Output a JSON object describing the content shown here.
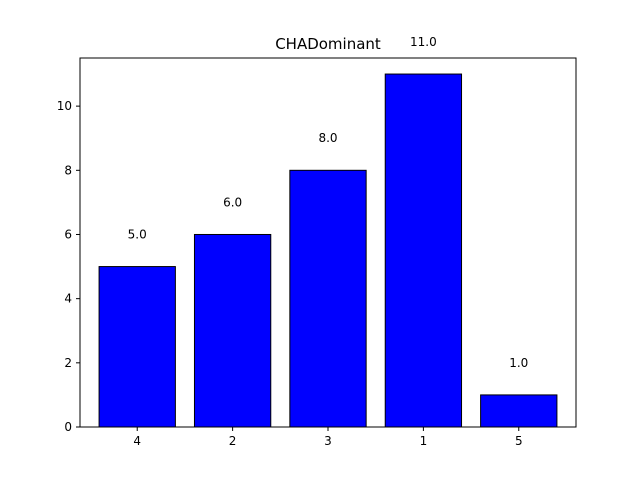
{
  "chart_data": {
    "type": "bar",
    "title": "CHADominant",
    "xlabel": "",
    "ylabel": "",
    "categories": [
      "4",
      "2",
      "3",
      "1",
      "5"
    ],
    "values": [
      5.0,
      6.0,
      8.0,
      11.0,
      1.0
    ],
    "data_labels": [
      "5.0",
      "6.0",
      "8.0",
      "11.0",
      "1.0"
    ],
    "ylim": [
      0,
      11.5
    ],
    "yticks": [
      0,
      2,
      4,
      6,
      8,
      10
    ],
    "grid": false,
    "colors": {
      "bar_fill": "#0000ff",
      "bar_edge": "#000000",
      "axis": "#000000"
    }
  }
}
